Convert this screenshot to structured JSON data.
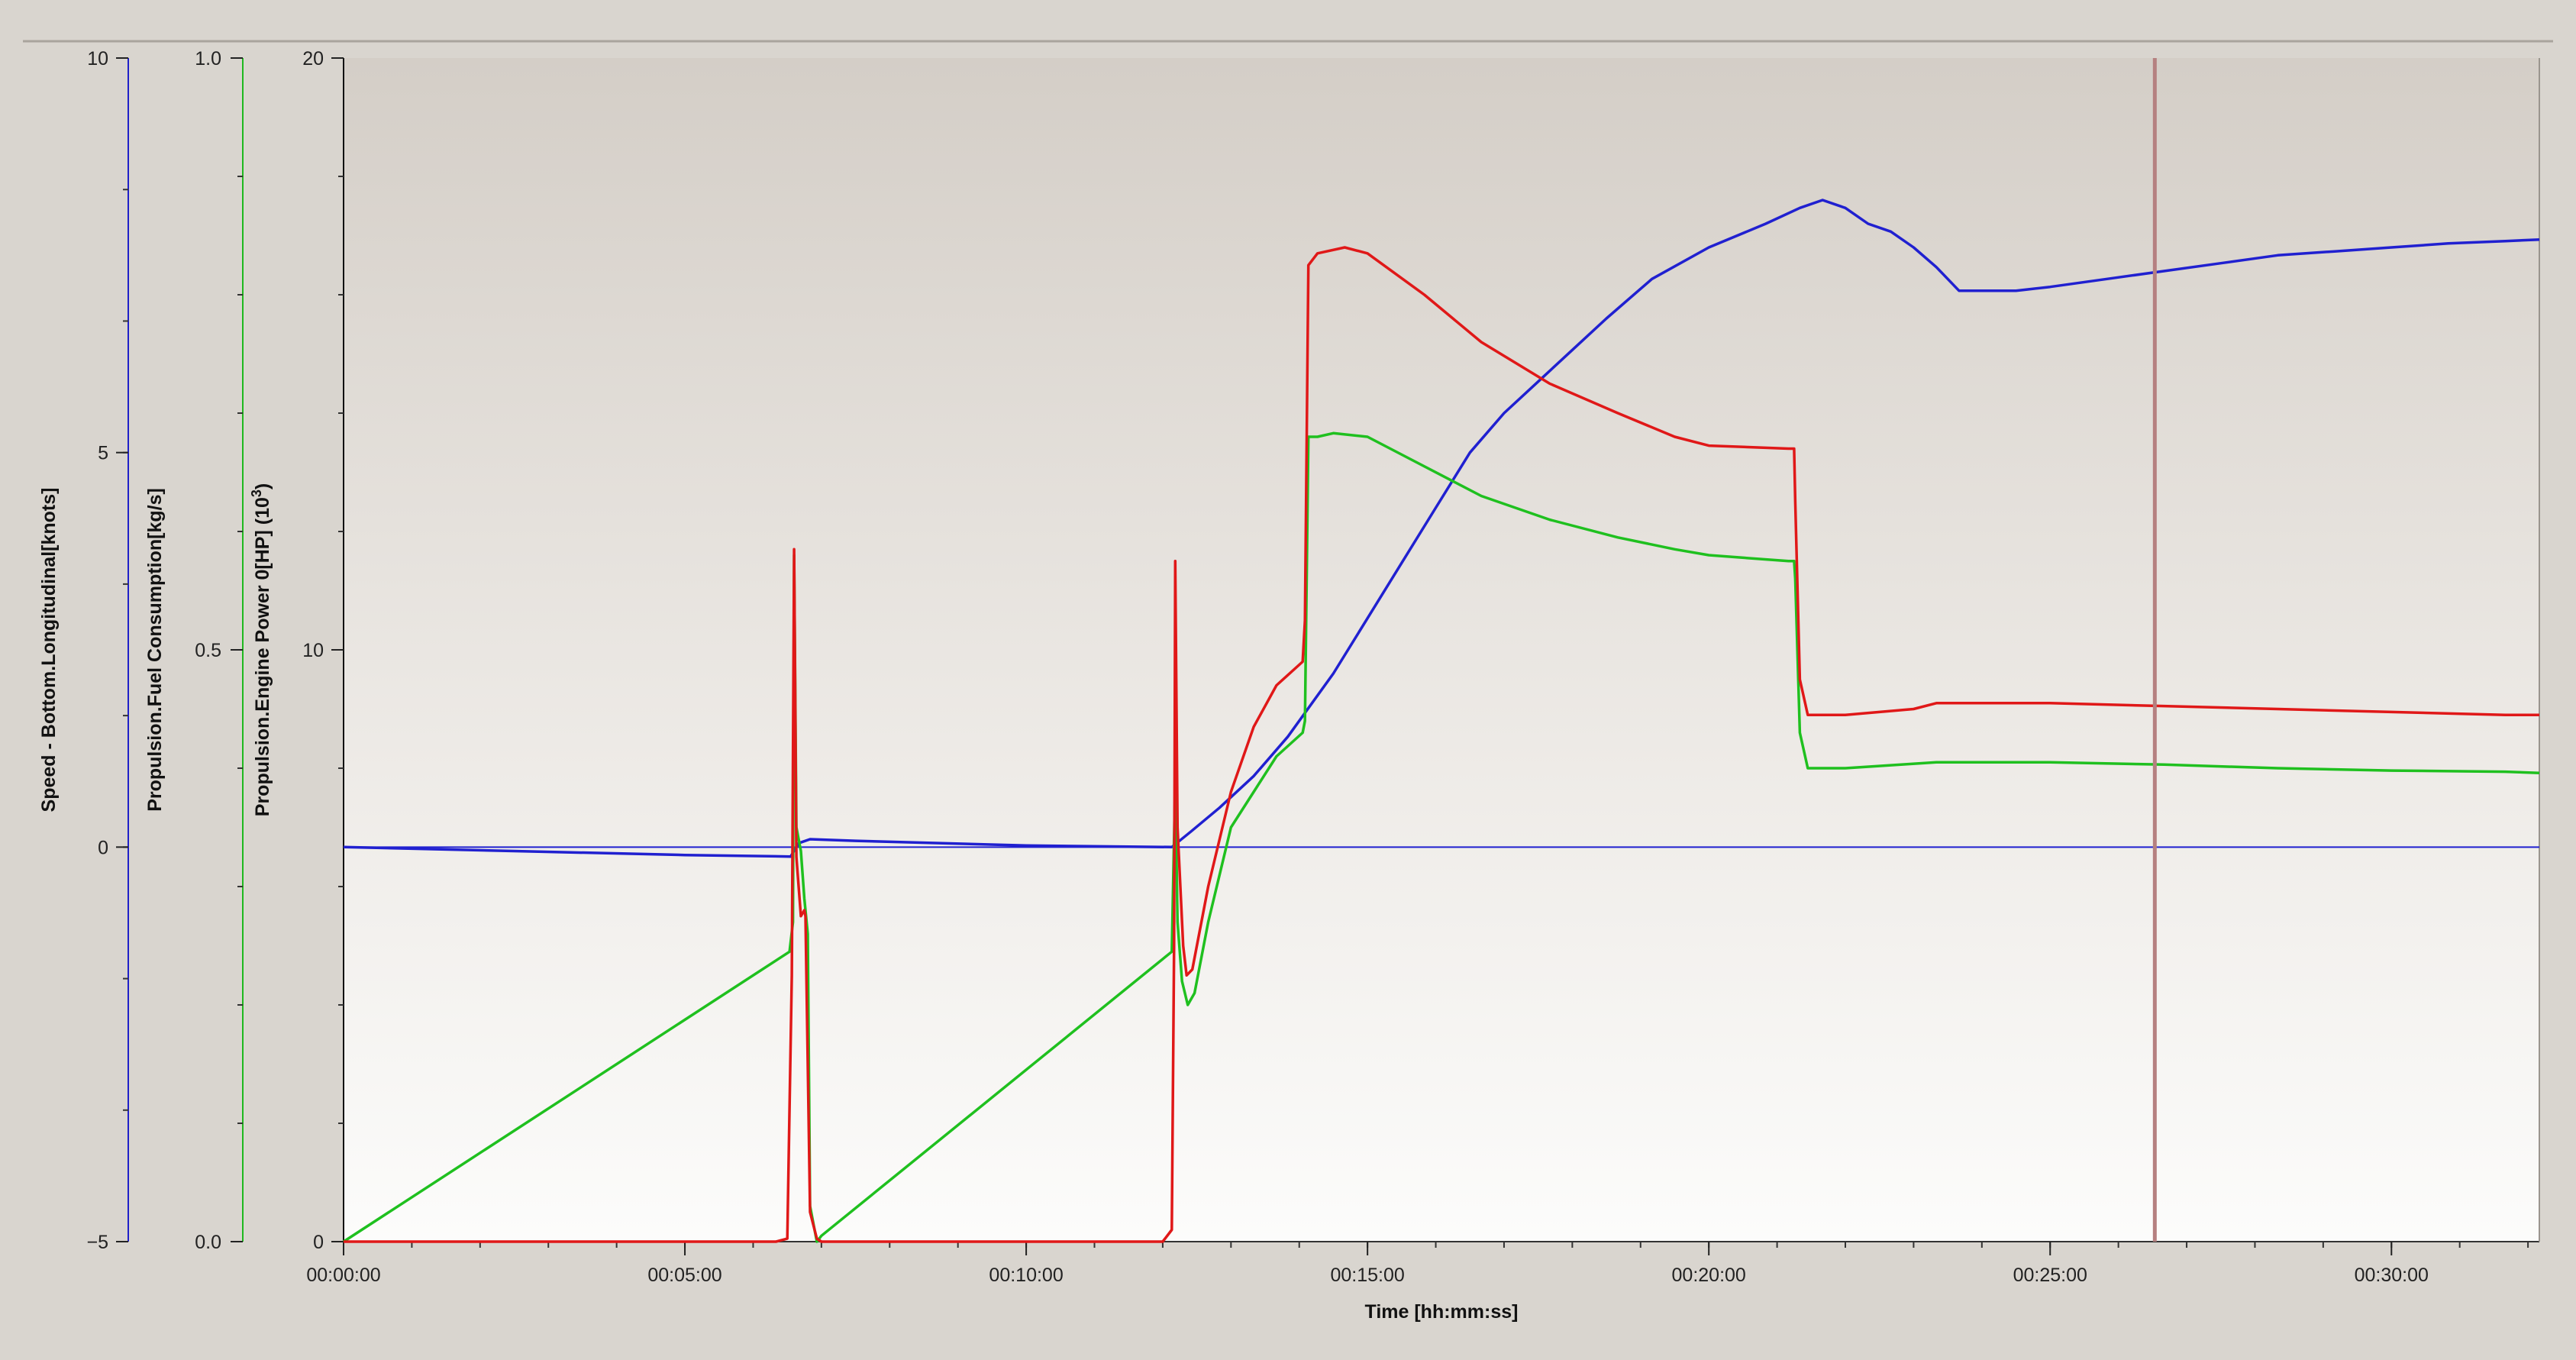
{
  "chart_data": {
    "type": "line",
    "x_label": "Time [hh:mm:ss]",
    "x_range_seconds": [
      0,
      1930
    ],
    "x_ticks": [
      {
        "t": 0,
        "label": "00:00:00"
      },
      {
        "t": 300,
        "label": "00:05:00"
      },
      {
        "t": 600,
        "label": "00:10:00"
      },
      {
        "t": 900,
        "label": "00:15:00"
      },
      {
        "t": 1200,
        "label": "00:20:00"
      },
      {
        "t": 1500,
        "label": "00:25:00"
      },
      {
        "t": 1800,
        "label": "00:30:00"
      }
    ],
    "cursor_time_seconds": 1592,
    "axes": [
      {
        "id": "speed",
        "title": "Speed - Bottom.Longitudinal[knots]",
        "color": "#2020c8",
        "range": [
          -5,
          10
        ],
        "ticks": [
          {
            "v": -5,
            "label": "−5"
          },
          {
            "v": 0,
            "label": "0"
          },
          {
            "v": 5,
            "label": "5"
          },
          {
            "v": 10,
            "label": "10"
          }
        ]
      },
      {
        "id": "fuel",
        "title": "Propulsion.Fuel Consumption[kg/s]",
        "color": "#1fb81f",
        "range": [
          0.0,
          1.0
        ],
        "ticks": [
          {
            "v": 0.0,
            "label": "0.0"
          },
          {
            "v": 0.5,
            "label": "0.5"
          },
          {
            "v": 1.0,
            "label": "1.0"
          }
        ]
      },
      {
        "id": "power",
        "title": "Propulsion.Engine Power 0[HP] (10",
        "title_sup": "3",
        "title_end": ")",
        "color": "#111111",
        "range": [
          0,
          20
        ],
        "ticks": [
          {
            "v": 0,
            "label": "0"
          },
          {
            "v": 10,
            "label": "10"
          },
          {
            "v": 20,
            "label": "20"
          }
        ]
      }
    ],
    "series": [
      {
        "axis": "speed",
        "color": "#2020d0",
        "points": [
          [
            0,
            0.0
          ],
          [
            150,
            -0.05
          ],
          [
            300,
            -0.1
          ],
          [
            393,
            -0.12
          ],
          [
            400,
            0.05
          ],
          [
            410,
            0.1
          ],
          [
            450,
            0.08
          ],
          [
            600,
            0.02
          ],
          [
            728,
            0.0
          ],
          [
            745,
            0.2
          ],
          [
            770,
            0.5
          ],
          [
            800,
            0.9
          ],
          [
            830,
            1.4
          ],
          [
            870,
            2.2
          ],
          [
            900,
            2.9
          ],
          [
            930,
            3.6
          ],
          [
            960,
            4.3
          ],
          [
            990,
            5.0
          ],
          [
            1020,
            5.5
          ],
          [
            1050,
            5.9
          ],
          [
            1080,
            6.3
          ],
          [
            1110,
            6.7
          ],
          [
            1150,
            7.2
          ],
          [
            1200,
            7.6
          ],
          [
            1250,
            7.9
          ],
          [
            1280,
            8.1
          ],
          [
            1300,
            8.2
          ],
          [
            1320,
            8.1
          ],
          [
            1340,
            7.9
          ],
          [
            1360,
            7.8
          ],
          [
            1380,
            7.6
          ],
          [
            1400,
            7.35
          ],
          [
            1420,
            7.05
          ],
          [
            1440,
            7.05
          ],
          [
            1470,
            7.05
          ],
          [
            1500,
            7.1
          ],
          [
            1550,
            7.2
          ],
          [
            1600,
            7.3
          ],
          [
            1650,
            7.4
          ],
          [
            1700,
            7.5
          ],
          [
            1750,
            7.55
          ],
          [
            1800,
            7.6
          ],
          [
            1850,
            7.65
          ],
          [
            1900,
            7.68
          ],
          [
            1930,
            7.7
          ]
        ]
      },
      {
        "axis": "fuel",
        "color": "#1fc01f",
        "points": [
          [
            0,
            0.0
          ],
          [
            392,
            0.245
          ],
          [
            395,
            0.27
          ],
          [
            396,
            0.58
          ],
          [
            398,
            0.35
          ],
          [
            402,
            0.33
          ],
          [
            405,
            0.29
          ],
          [
            406,
            0.28
          ],
          [
            408,
            0.26
          ],
          [
            410,
            0.03
          ],
          [
            416,
            0.0
          ],
          [
            420,
            0.005
          ],
          [
            728,
            0.245
          ],
          [
            731,
            0.39
          ],
          [
            733,
            0.27
          ],
          [
            737,
            0.22
          ],
          [
            742,
            0.2
          ],
          [
            748,
            0.21
          ],
          [
            760,
            0.27
          ],
          [
            780,
            0.35
          ],
          [
            800,
            0.38
          ],
          [
            820,
            0.41
          ],
          [
            843,
            0.43
          ],
          [
            845,
            0.44
          ],
          [
            848,
            0.68
          ],
          [
            856,
            0.68
          ],
          [
            870,
            0.683
          ],
          [
            900,
            0.68
          ],
          [
            940,
            0.66
          ],
          [
            1000,
            0.63
          ],
          [
            1060,
            0.61
          ],
          [
            1120,
            0.595
          ],
          [
            1170,
            0.585
          ],
          [
            1200,
            0.58
          ],
          [
            1270,
            0.575
          ],
          [
            1275,
            0.575
          ],
          [
            1276,
            0.56
          ],
          [
            1280,
            0.43
          ],
          [
            1287,
            0.4
          ],
          [
            1320,
            0.4
          ],
          [
            1400,
            0.405
          ],
          [
            1500,
            0.405
          ],
          [
            1600,
            0.403
          ],
          [
            1700,
            0.4
          ],
          [
            1800,
            0.398
          ],
          [
            1900,
            0.397
          ],
          [
            1930,
            0.396
          ]
        ]
      },
      {
        "axis": "power",
        "color": "#e01818",
        "points": [
          [
            0,
            0.0
          ],
          [
            380,
            0.0
          ],
          [
            390,
            0.05
          ],
          [
            394,
            4.5
          ],
          [
            396,
            11.7
          ],
          [
            398,
            6.5
          ],
          [
            402,
            5.5
          ],
          [
            405,
            5.6
          ],
          [
            406,
            5.5
          ],
          [
            408,
            3.0
          ],
          [
            410,
            0.5
          ],
          [
            416,
            0.05
          ],
          [
            420,
            0.0
          ],
          [
            720,
            0.0
          ],
          [
            728,
            0.2
          ],
          [
            730,
            5.0
          ],
          [
            731,
            11.5
          ],
          [
            733,
            7.0
          ],
          [
            738,
            5.0
          ],
          [
            741,
            4.5
          ],
          [
            746,
            4.6
          ],
          [
            760,
            6.0
          ],
          [
            780,
            7.6
          ],
          [
            800,
            8.7
          ],
          [
            820,
            9.4
          ],
          [
            843,
            9.8
          ],
          [
            845,
            10.5
          ],
          [
            848,
            16.5
          ],
          [
            856,
            16.7
          ],
          [
            880,
            16.8
          ],
          [
            900,
            16.7
          ],
          [
            950,
            16.0
          ],
          [
            1000,
            15.2
          ],
          [
            1060,
            14.5
          ],
          [
            1120,
            14.0
          ],
          [
            1170,
            13.6
          ],
          [
            1200,
            13.45
          ],
          [
            1270,
            13.4
          ],
          [
            1275,
            13.4
          ],
          [
            1276,
            12.5
          ],
          [
            1280,
            9.5
          ],
          [
            1287,
            8.9
          ],
          [
            1320,
            8.9
          ],
          [
            1380,
            9.0
          ],
          [
            1400,
            9.1
          ],
          [
            1500,
            9.1
          ],
          [
            1600,
            9.05
          ],
          [
            1700,
            9.0
          ],
          [
            1800,
            8.95
          ],
          [
            1900,
            8.9
          ],
          [
            1930,
            8.9
          ]
        ]
      }
    ]
  }
}
